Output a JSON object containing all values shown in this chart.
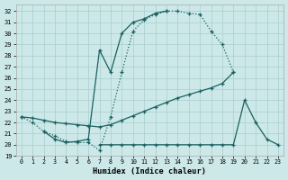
{
  "xlabel": "Humidex (Indice chaleur)",
  "bg_color": "#cce8e8",
  "grid_color": "#aacece",
  "line_color": "#1a6060",
  "xlim": [
    -0.5,
    23.5
  ],
  "ylim": [
    19,
    32.6
  ],
  "yticks": [
    19,
    20,
    21,
    22,
    23,
    24,
    25,
    26,
    27,
    28,
    29,
    30,
    31,
    32
  ],
  "xticks": [
    0,
    1,
    2,
    3,
    4,
    5,
    6,
    7,
    8,
    9,
    10,
    11,
    12,
    13,
    14,
    15,
    16,
    17,
    18,
    19,
    20,
    21,
    22,
    23
  ],
  "y1": [
    22.5,
    22.0,
    21.2,
    20.8,
    20.3,
    20.2,
    20.2,
    19.5,
    22.5,
    26.5,
    30.2,
    31.2,
    31.7,
    32.0,
    32.0,
    31.8,
    31.7,
    30.2,
    29.0,
    26.5,
    null,
    null,
    null,
    null
  ],
  "y2": [
    null,
    null,
    21.2,
    20.5,
    20.2,
    20.3,
    20.5,
    28.5,
    26.5,
    30.0,
    31.0,
    31.3,
    31.8,
    32.0,
    null,
    null,
    null,
    null,
    null,
    null,
    null,
    null,
    null,
    null
  ],
  "y3": [
    22.5,
    22.4,
    22.2,
    22.0,
    21.9,
    21.8,
    21.7,
    21.6,
    21.8,
    22.2,
    22.6,
    23.0,
    23.4,
    23.8,
    24.2,
    24.5,
    24.8,
    25.1,
    25.5,
    26.5,
    null,
    null,
    null,
    null
  ],
  "y4": [
    null,
    null,
    null,
    null,
    null,
    null,
    null,
    20.0,
    20.0,
    20.0,
    20.0,
    20.0,
    20.0,
    20.0,
    20.0,
    20.0,
    20.0,
    20.0,
    20.0,
    20.0,
    24.0,
    22.0,
    20.5,
    20.0
  ]
}
